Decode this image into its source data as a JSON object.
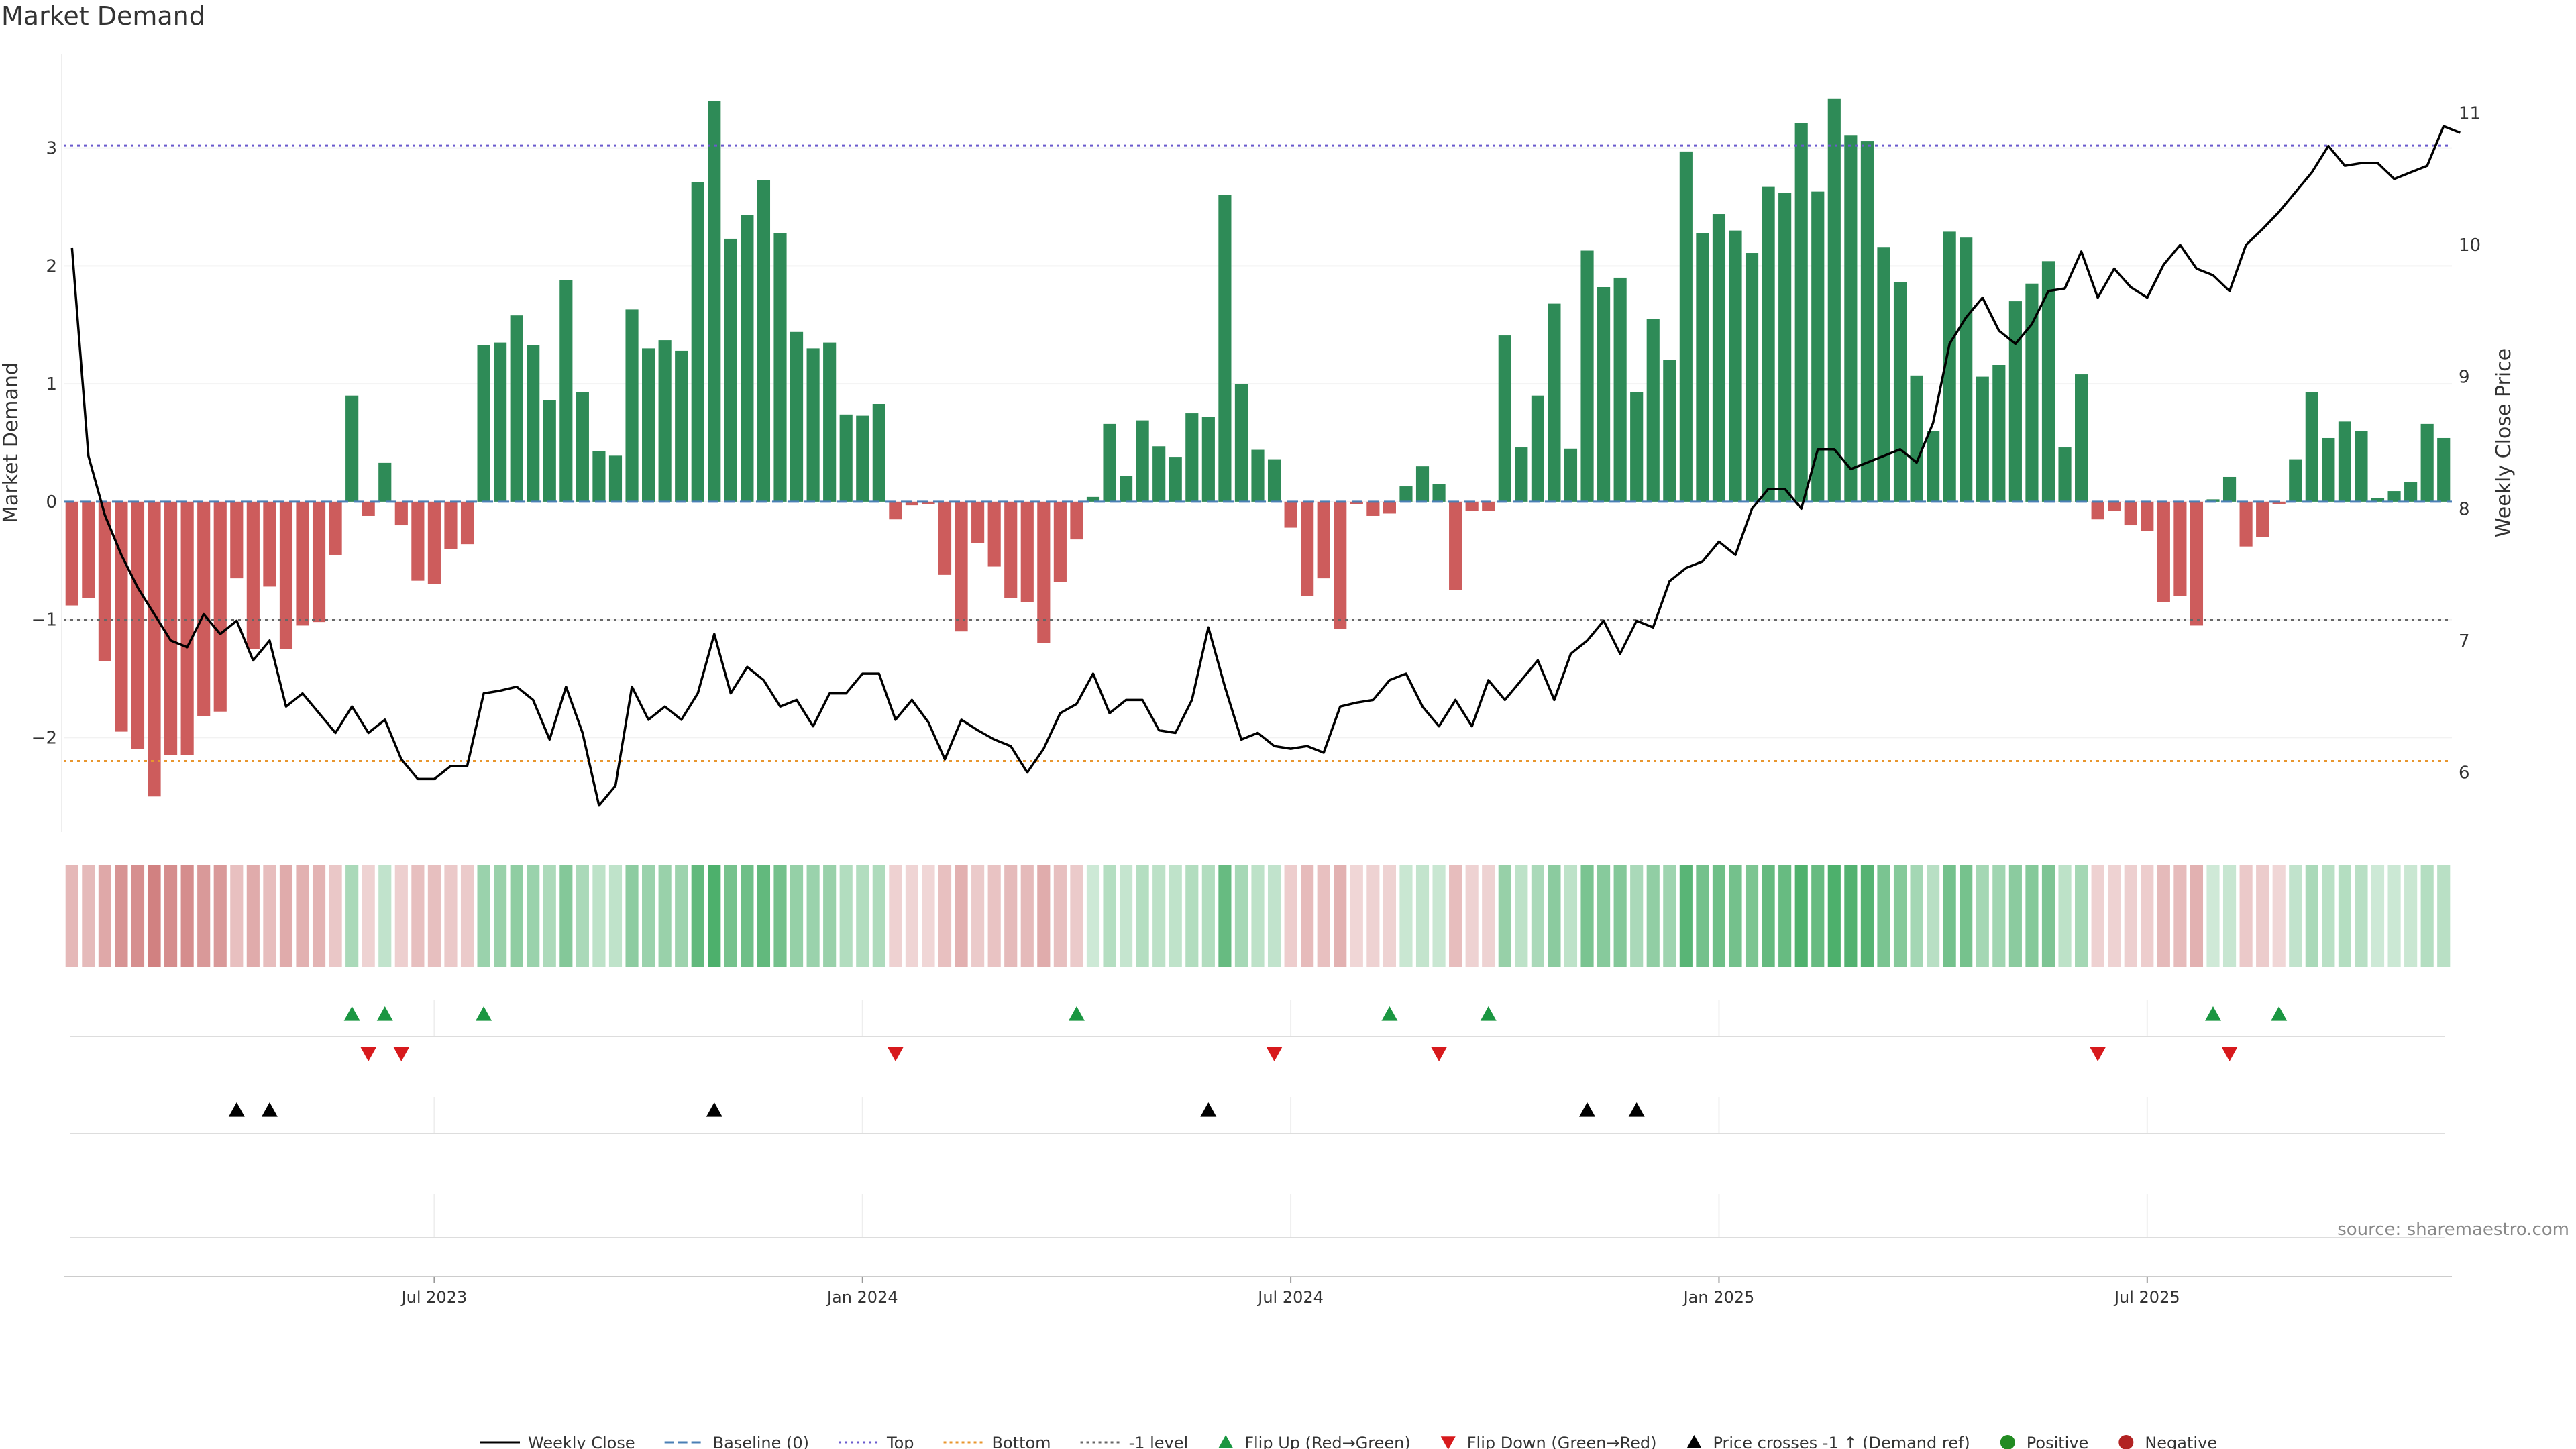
{
  "title": "Market Demand",
  "source_label": "source: sharemaestro.com",
  "colors": {
    "positive": "#2e8b57",
    "negative": "#cd5c5c",
    "top_line": "#6a5acd",
    "bottom_line": "#e8962e",
    "minus1_line": "#666666",
    "baseline": "#4a7fb5",
    "flip_up": "#1a9641",
    "flip_down": "#d7191c",
    "price_cross": "#000000",
    "price_line": "#000000",
    "positive_dot": "#228b22",
    "negative_dot": "#b22222"
  },
  "chart_data": {
    "type": "bar+line",
    "title": "Market Demand",
    "ylabel": "Market Demand",
    "y2label": "Weekly Close Price",
    "ylim": [
      -2.8,
      3.8
    ],
    "y2lim": [
      5.55,
      11.45
    ],
    "yticks": [
      -2,
      -1,
      0,
      1,
      2,
      3
    ],
    "y2ticks": [
      6,
      7,
      8,
      9,
      10,
      11
    ],
    "reference_levels": {
      "top": 3.02,
      "bottom": -2.2,
      "minus1": -1.0,
      "baseline": 0
    },
    "xticks": [
      "Jul 2023",
      "Jan 2024",
      "Jul 2024",
      "Jan 2025",
      "Jul 2025"
    ],
    "xtick_index": [
      22,
      48,
      74,
      100,
      126
    ],
    "demand": [
      -0.88,
      -0.82,
      -1.35,
      -1.95,
      -2.1,
      -2.5,
      -2.15,
      -2.15,
      -1.82,
      -1.78,
      -0.65,
      -1.25,
      -0.72,
      -1.25,
      -1.05,
      -1.02,
      -0.45,
      0.9,
      -0.12,
      0.33,
      -0.2,
      -0.67,
      -0.7,
      -0.4,
      -0.36,
      1.33,
      1.35,
      1.58,
      1.33,
      0.86,
      1.88,
      0.93,
      0.43,
      0.39,
      1.63,
      1.3,
      1.37,
      1.28,
      2.71,
      3.4,
      2.23,
      2.43,
      2.73,
      2.28,
      1.44,
      1.3,
      1.35,
      0.74,
      0.73,
      0.83,
      -0.15,
      -0.03,
      -0.02,
      -0.62,
      -1.1,
      -0.35,
      -0.55,
      -0.82,
      -0.85,
      -1.2,
      -0.68,
      -0.32,
      0.04,
      0.66,
      0.22,
      0.69,
      0.47,
      0.38,
      0.75,
      0.72,
      2.6,
      1.0,
      0.44,
      0.36,
      -0.22,
      -0.8,
      -0.65,
      -1.08,
      -0.02,
      -0.12,
      -0.1,
      0.13,
      0.3,
      0.15,
      -0.75,
      -0.08,
      -0.08,
      1.41,
      0.46,
      0.9,
      1.68,
      0.45,
      2.13,
      1.82,
      1.9,
      0.93,
      1.55,
      1.2,
      2.97,
      2.28,
      2.44,
      2.3,
      2.11,
      2.67,
      2.62,
      3.21,
      2.63,
      3.42,
      3.11,
      3.06,
      2.16,
      1.86,
      1.07,
      0.6,
      2.29,
      2.24,
      1.06,
      1.16,
      1.7,
      1.85,
      2.04,
      0.46,
      1.08,
      -0.15,
      -0.08,
      -0.2,
      -0.25,
      -0.85,
      -0.8,
      -1.05,
      0.02,
      0.21,
      -0.38,
      -0.3,
      -0.02,
      0.36,
      0.93,
      0.54,
      0.68,
      0.6,
      0.03,
      0.09,
      0.17,
      0.66,
      0.54
    ],
    "weekly_close": [
      9.98,
      8.4,
      7.95,
      7.65,
      7.4,
      7.2,
      7.0,
      6.95,
      7.2,
      7.05,
      7.15,
      6.85,
      7.0,
      6.5,
      6.6,
      6.45,
      6.3,
      6.5,
      6.3,
      6.4,
      6.1,
      5.95,
      5.95,
      6.05,
      6.05,
      6.6,
      6.62,
      6.65,
      6.55,
      6.25,
      6.65,
      6.3,
      5.75,
      5.9,
      6.65,
      6.4,
      6.5,
      6.4,
      6.6,
      7.05,
      6.6,
      6.8,
      6.7,
      6.5,
      6.55,
      6.35,
      6.6,
      6.6,
      6.75,
      6.75,
      6.4,
      6.55,
      6.38,
      6.1,
      6.4,
      6.32,
      6.25,
      6.2,
      6.0,
      6.18,
      6.45,
      6.52,
      6.75,
      6.45,
      6.55,
      6.55,
      6.32,
      6.3,
      6.55,
      7.1,
      6.65,
      6.25,
      6.3,
      6.2,
      6.18,
      6.2,
      6.15,
      6.5,
      6.53,
      6.55,
      6.7,
      6.75,
      6.5,
      6.35,
      6.55,
      6.35,
      6.7,
      6.55,
      6.7,
      6.85,
      6.55,
      6.9,
      7.0,
      7.15,
      6.9,
      7.15,
      7.1,
      7.45,
      7.55,
      7.6,
      7.75,
      7.65,
      8.0,
      8.15,
      8.15,
      8.0,
      8.45,
      8.45,
      8.3,
      8.35,
      8.4,
      8.45,
      8.35,
      8.65,
      9.25,
      9.45,
      9.6,
      9.35,
      9.25,
      9.4,
      9.65,
      9.67,
      9.95,
      9.6,
      9.82,
      9.68,
      9.6,
      9.85,
      10.0,
      9.82,
      9.77,
      9.65,
      10.0,
      10.12,
      10.25,
      10.4,
      10.55,
      10.75,
      10.6,
      10.62,
      10.62,
      10.5,
      10.55,
      10.6,
      10.9,
      10.85
    ]
  },
  "signal_rows": {
    "flip_up_index": [
      17,
      19,
      25,
      61,
      80,
      86,
      130,
      134
    ],
    "flip_down_index": [
      18,
      20,
      50,
      73,
      83,
      123,
      131
    ],
    "price_cross_index": [
      10,
      12,
      39,
      69,
      92,
      95
    ]
  },
  "legend": [
    {
      "label": "Weekly Close",
      "kind": "solid-line",
      "color": "#000000"
    },
    {
      "label": "Baseline (0)",
      "kind": "dashed-line",
      "color": "#4a7fb5"
    },
    {
      "label": "Top",
      "kind": "dotted-line",
      "color": "#6a5acd"
    },
    {
      "label": "Bottom",
      "kind": "dotted-line",
      "color": "#e8962e"
    },
    {
      "label": "-1 level",
      "kind": "dotted-line",
      "color": "#666666"
    },
    {
      "label": "Flip Up (Red→Green)",
      "kind": "triangle-up",
      "color": "#1a9641"
    },
    {
      "label": "Flip Down (Green→Red)",
      "kind": "triangle-down",
      "color": "#d7191c"
    },
    {
      "label": "Price crosses -1 ↑ (Demand ref)",
      "kind": "triangle-up",
      "color": "#000000"
    },
    {
      "label": "Positive",
      "kind": "dot",
      "color": "#228b22"
    },
    {
      "label": "Negative",
      "kind": "dot",
      "color": "#b22222"
    }
  ]
}
